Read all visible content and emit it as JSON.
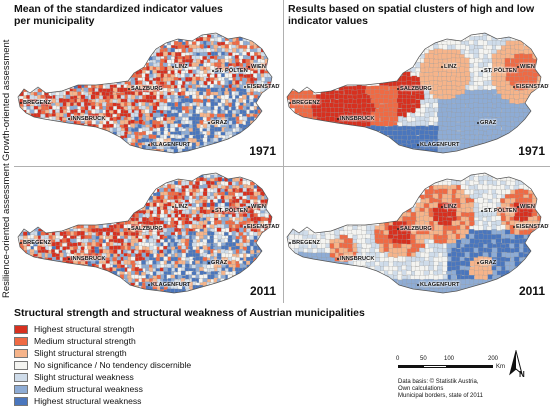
{
  "columns": {
    "left_title_line1": "Mean of the standardized indicator values",
    "left_title_line2": "per municipality",
    "right_title_line1": "Results based on spatial clusters of high and low",
    "right_title_line2": "indicator values"
  },
  "rows": {
    "top_label": "Growth-oriented assessment",
    "bottom_label": "Resilience-oriented assessment"
  },
  "years": {
    "top_left": "1971",
    "top_right": "1971",
    "bottom_left": "2011",
    "bottom_right": "2011"
  },
  "cities": {
    "bregenz": "BREGENZ",
    "innsbruck": "INNSBRUCK",
    "salzburg": "SALZBURG",
    "linz": "LINZ",
    "st_poelten": "ST. PÖLTEN",
    "wien": "WIEN",
    "eisenstadt": "EISENSTADT",
    "graz": "GRAZ",
    "klagenfurt": "KLAGENFURT"
  },
  "legend": {
    "title": "Structural strength and structural weakness of Austrian municipalities",
    "items": [
      {
        "label": "Highest structural strength",
        "color": "#d7301f"
      },
      {
        "label": "Medium structural strength",
        "color": "#ef6a44"
      },
      {
        "label": "Slight structural strength",
        "color": "#f6b48a"
      },
      {
        "label": "No significance / No tendency discernible",
        "color": "#f4f4f1"
      },
      {
        "label": "Slight structural weakness",
        "color": "#cfdcea"
      },
      {
        "label": "Medium structural weakness",
        "color": "#8eacd5"
      },
      {
        "label": "Highest structural weakness",
        "color": "#4a76bd"
      }
    ]
  },
  "scale_bar": {
    "ticks": [
      "0",
      "50",
      "100",
      "200"
    ],
    "unit": "Km"
  },
  "north_arrow": {
    "label": "N"
  },
  "source": {
    "line1": "Data basis: © Statistik Austria,",
    "line2": "Own calculations",
    "line3": "Municipal borders, state of 2011"
  }
}
